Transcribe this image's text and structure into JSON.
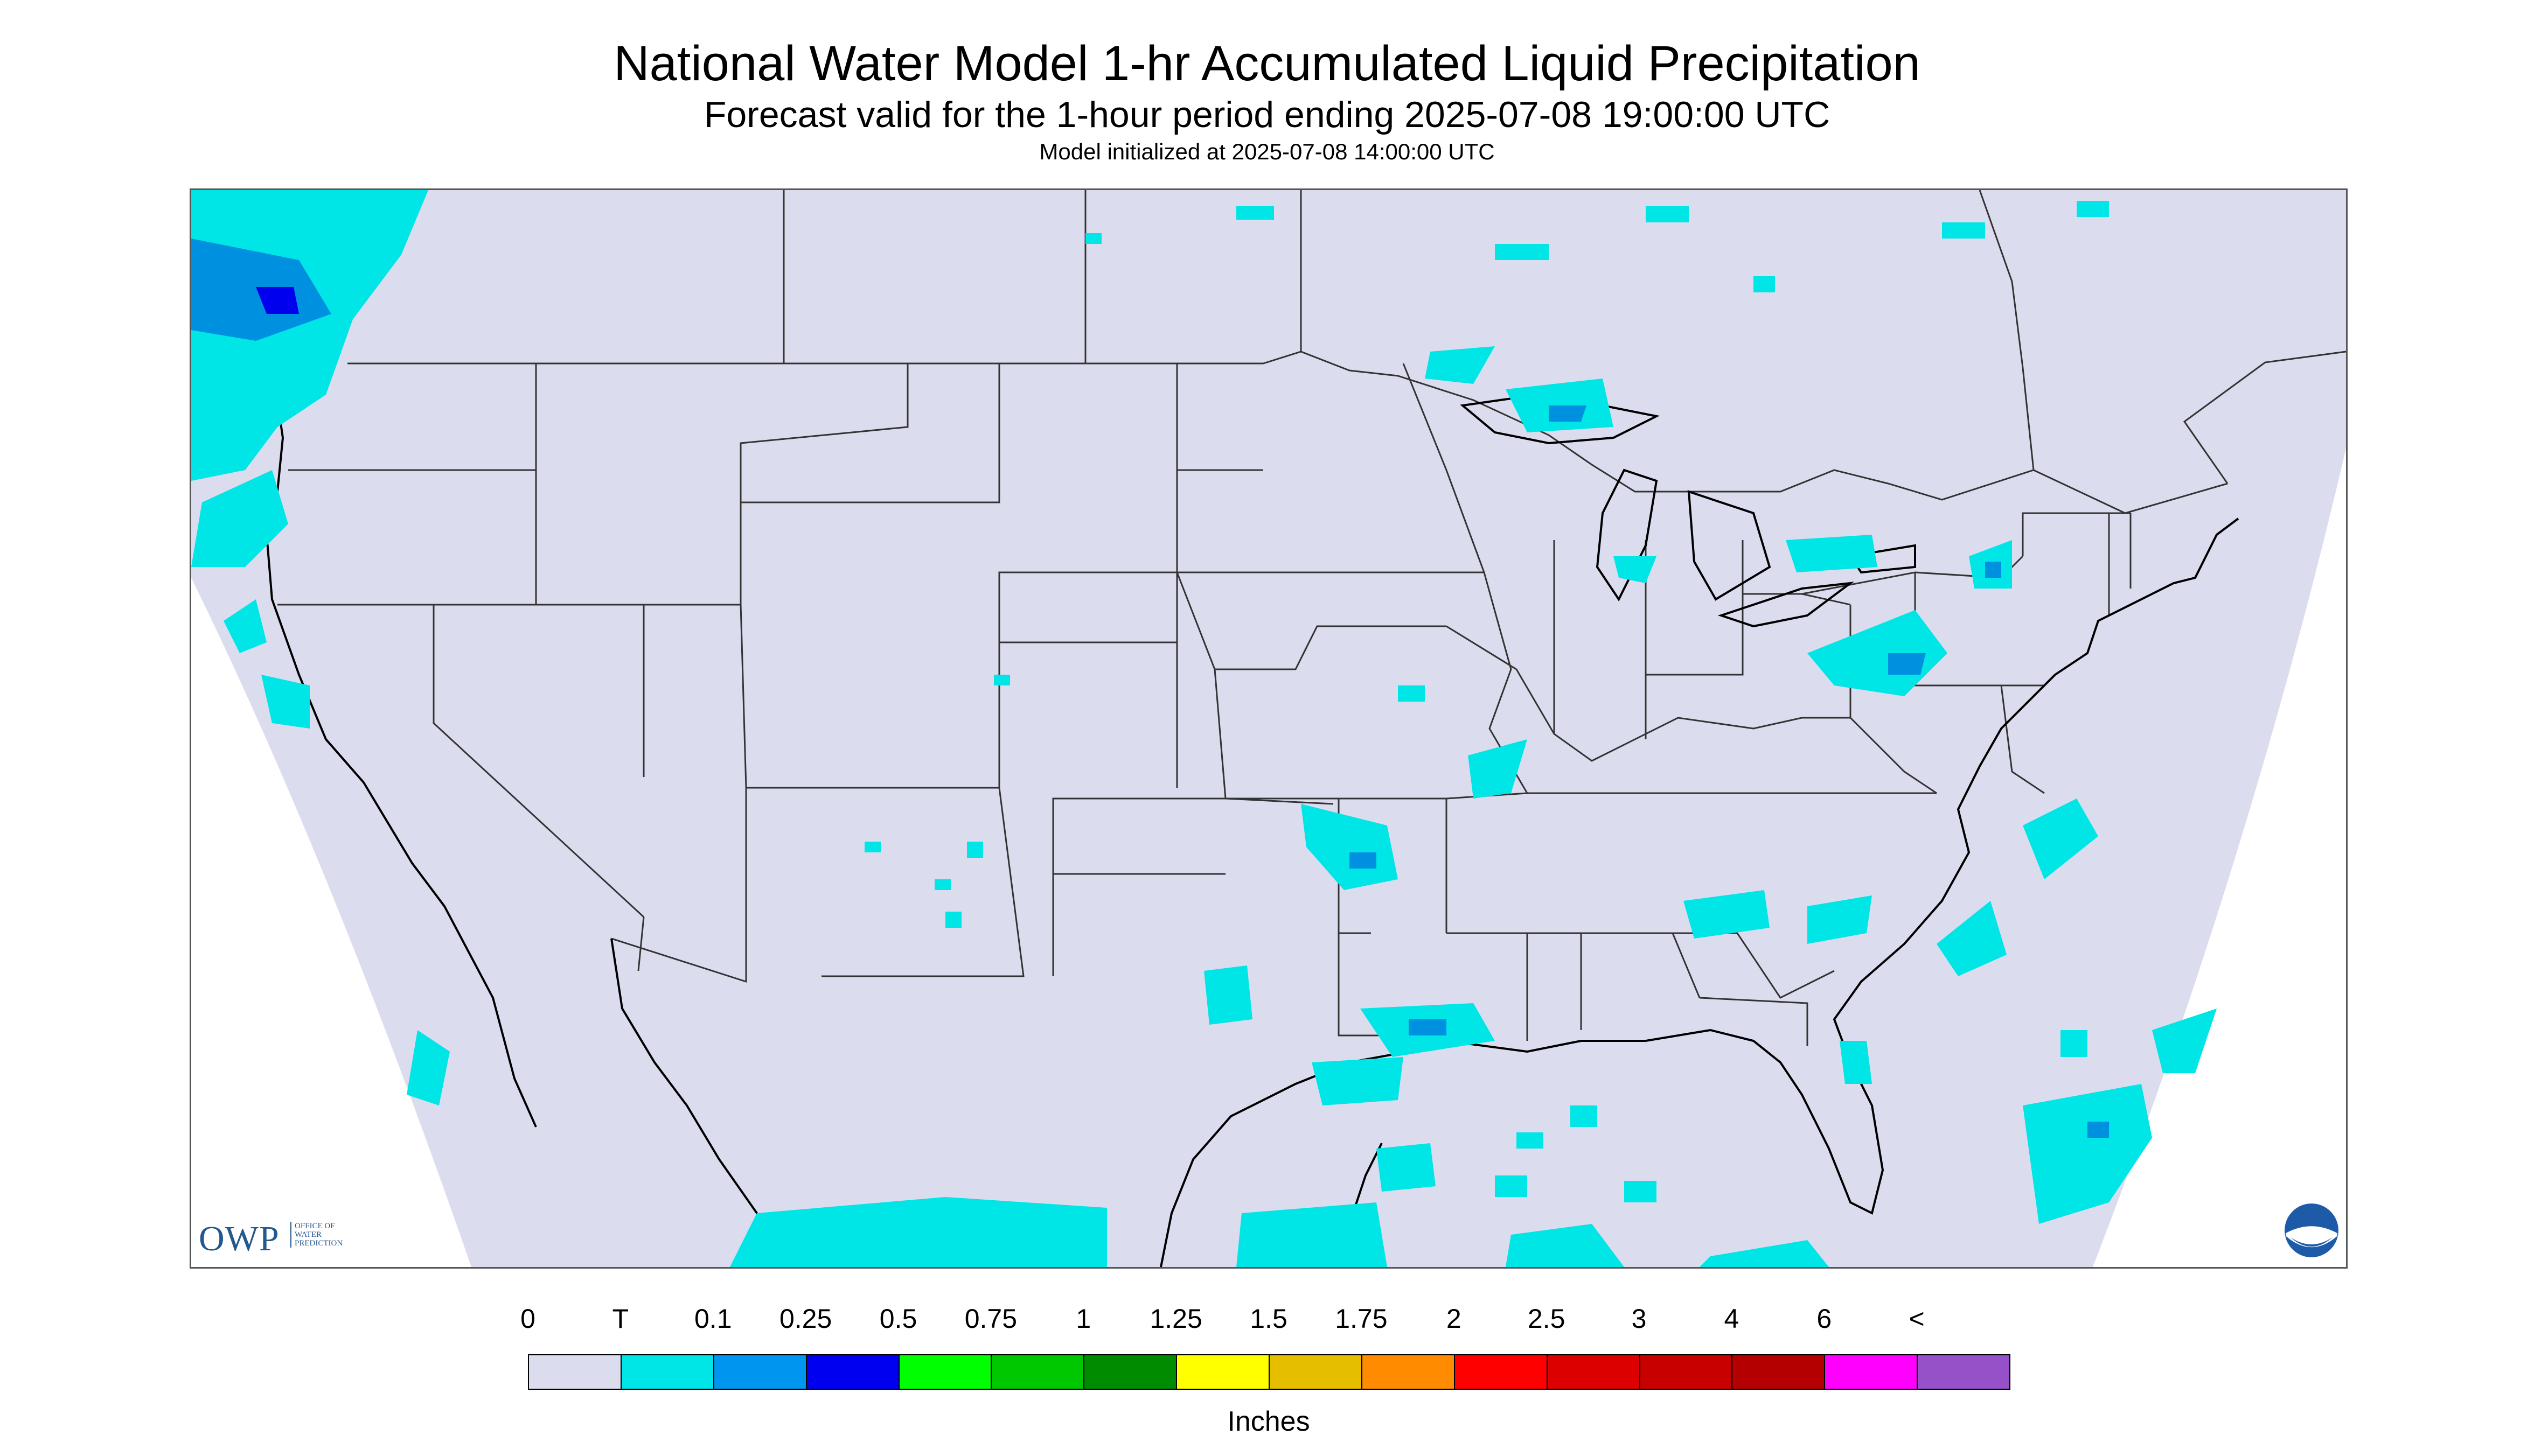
{
  "title": "National Water Model 1-hr Accumulated Liquid Precipitation",
  "subtitle": "Forecast valid for the 1-hour period ending 2025-07-08 19:00:00 UTC",
  "init_text": "Model initialized at 2025-07-08 14:00:00 UTC",
  "map": {
    "background_color": "#dcdcef",
    "outside_color": "#ffffff",
    "boundary_color": "#000000",
    "precip_colors": [
      "#00e5e5",
      "#0090e0",
      "#0000ee",
      "#00dd00"
    ]
  },
  "logos": {
    "owp_mark": "OWP",
    "owp_sub": [
      "OFFICE OF",
      "WATER",
      "PREDICTION"
    ],
    "noaa_icon": "noaa-logo-icon"
  },
  "legend": {
    "labels": [
      "0",
      "T",
      "0.1",
      "0.25",
      "0.5",
      "0.75",
      "1",
      "1.25",
      "1.5",
      "1.75",
      "2",
      "2.5",
      "3",
      "4",
      "6",
      "<"
    ],
    "colors": [
      "#dcdcef",
      "#00e5e5",
      "#0096f0",
      "#0000f0",
      "#00ff00",
      "#00c800",
      "#008c00",
      "#ffff00",
      "#e6be00",
      "#ff8c00",
      "#ff0000",
      "#dc0000",
      "#c80000",
      "#b40000",
      "#ff00ff",
      "#9650c8"
    ],
    "units": "Inches"
  }
}
